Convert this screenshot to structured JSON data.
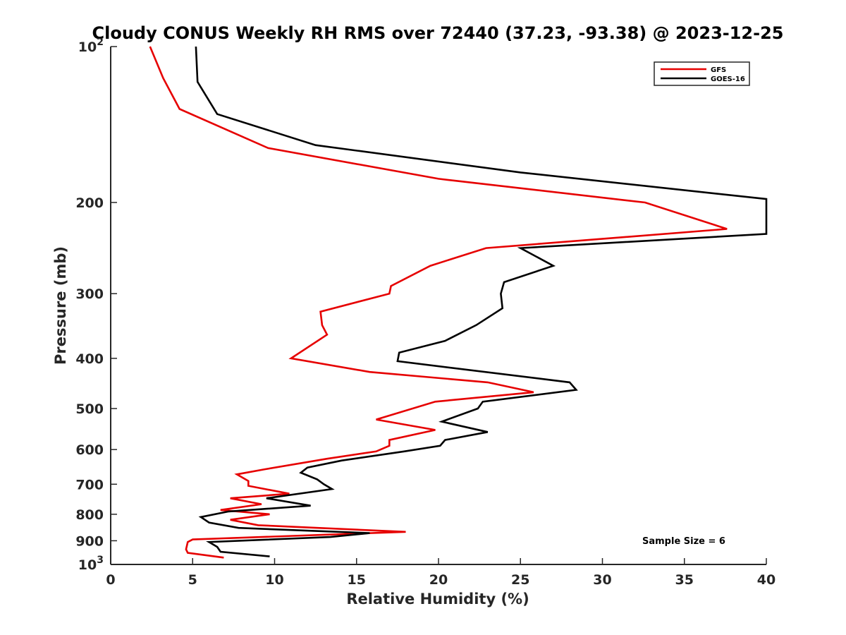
{
  "chart_data": {
    "type": "line",
    "title": "Cloudy CONUS Weekly RH RMS over 72440 (37.23, -93.38) @ 2023-12-25",
    "xlabel": "Relative Humidity (%)",
    "ylabel": "Pressure (mb)",
    "xlim": [
      0,
      40
    ],
    "ylim": [
      100,
      1000
    ],
    "yscale": "log",
    "y_reversed": true,
    "grid": false,
    "legend_position": "top-right",
    "x_ticks": [
      0,
      5,
      10,
      15,
      20,
      25,
      30,
      35,
      40
    ],
    "x_tick_labels": [
      "0",
      "5",
      "10",
      "15",
      "20",
      "25",
      "30",
      "35",
      "40"
    ],
    "y_ticks": [
      100,
      200,
      300,
      400,
      500,
      600,
      700,
      800,
      900,
      1000
    ],
    "y_tick_labels": [
      {
        "base": "10",
        "exp": "2"
      },
      {
        "base": "200",
        "exp": ""
      },
      {
        "base": "300",
        "exp": ""
      },
      {
        "base": "400",
        "exp": ""
      },
      {
        "base": "500",
        "exp": ""
      },
      {
        "base": "600",
        "exp": ""
      },
      {
        "base": "700",
        "exp": ""
      },
      {
        "base": "800",
        "exp": ""
      },
      {
        "base": "900",
        "exp": ""
      },
      {
        "base": "10",
        "exp": "3"
      }
    ],
    "annotation": "Sample Size = 6",
    "series": [
      {
        "name": "GFS",
        "color": "#e60000",
        "points": [
          [
            2.4,
            100
          ],
          [
            3.2,
            115
          ],
          [
            4.2,
            132
          ],
          [
            9.6,
            157
          ],
          [
            20.0,
            180
          ],
          [
            32.6,
            200
          ],
          [
            37.6,
            225
          ],
          [
            22.9,
            245
          ],
          [
            19.5,
            265
          ],
          [
            17.1,
            290
          ],
          [
            17.0,
            300
          ],
          [
            12.8,
            325
          ],
          [
            12.9,
            345
          ],
          [
            13.2,
            360
          ],
          [
            11.0,
            400
          ],
          [
            15.8,
            425
          ],
          [
            23.0,
            445
          ],
          [
            25.8,
            465
          ],
          [
            19.8,
            485
          ],
          [
            16.2,
            525
          ],
          [
            19.8,
            550
          ],
          [
            17.0,
            575
          ],
          [
            17.0,
            590
          ],
          [
            16.2,
            605
          ],
          [
            13.2,
            625
          ],
          [
            9.4,
            655
          ],
          [
            7.7,
            670
          ],
          [
            8.4,
            690
          ],
          [
            8.4,
            705
          ],
          [
            10.9,
            730
          ],
          [
            7.3,
            745
          ],
          [
            9.2,
            765
          ],
          [
            6.7,
            785
          ],
          [
            9.7,
            800
          ],
          [
            7.3,
            820
          ],
          [
            9.0,
            840
          ],
          [
            18.0,
            865
          ],
          [
            5.0,
            895
          ],
          [
            4.7,
            905
          ],
          [
            4.6,
            935
          ],
          [
            4.7,
            950
          ],
          [
            6.9,
            970
          ]
        ]
      },
      {
        "name": "GOES-16",
        "color": "#000000",
        "points": [
          [
            5.2,
            100
          ],
          [
            5.3,
            117
          ],
          [
            6.5,
            135
          ],
          [
            12.5,
            155
          ],
          [
            25.0,
            175
          ],
          [
            40.0,
            197
          ],
          [
            40.0,
            230
          ],
          [
            25.0,
            245
          ],
          [
            27.0,
            265
          ],
          [
            24.0,
            285
          ],
          [
            23.8,
            300
          ],
          [
            23.9,
            320
          ],
          [
            22.3,
            345
          ],
          [
            20.4,
            370
          ],
          [
            17.6,
            390
          ],
          [
            17.5,
            405
          ],
          [
            28.0,
            445
          ],
          [
            28.4,
            460
          ],
          [
            22.7,
            485
          ],
          [
            22.4,
            500
          ],
          [
            20.2,
            530
          ],
          [
            23.0,
            555
          ],
          [
            20.4,
            575
          ],
          [
            20.1,
            590
          ],
          [
            17.9,
            605
          ],
          [
            14.1,
            630
          ],
          [
            12.0,
            650
          ],
          [
            11.6,
            665
          ],
          [
            12.6,
            685
          ],
          [
            13.0,
            700
          ],
          [
            13.5,
            715
          ],
          [
            9.5,
            745
          ],
          [
            12.2,
            770
          ],
          [
            7.2,
            790
          ],
          [
            5.5,
            810
          ],
          [
            6.0,
            830
          ],
          [
            7.8,
            850
          ],
          [
            15.8,
            870
          ],
          [
            13.4,
            885
          ],
          [
            6.0,
            905
          ],
          [
            6.5,
            925
          ],
          [
            6.7,
            945
          ],
          [
            9.7,
            965
          ]
        ]
      }
    ]
  }
}
